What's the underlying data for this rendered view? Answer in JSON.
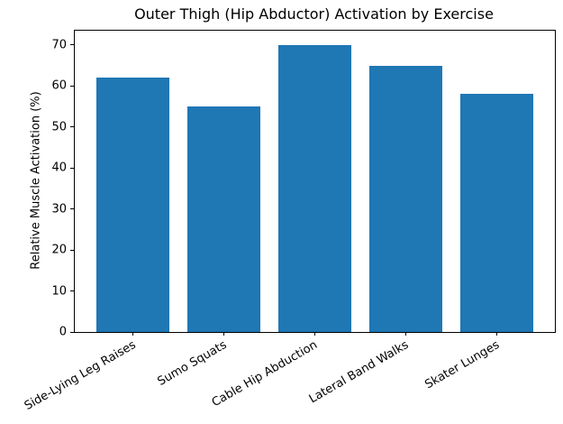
{
  "chart_data": {
    "type": "bar",
    "title": "Outer Thigh (Hip Abductor) Activation by Exercise",
    "xlabel": "",
    "ylabel": "Relative Muscle Activation (%)",
    "categories": [
      "Side-Lying Leg Raises",
      "Sumo Squats",
      "Cable Hip Abduction",
      "Lateral Band Walks",
      "Skater Lunges"
    ],
    "values": [
      62,
      55,
      70,
      65,
      58
    ],
    "yticks": [
      0,
      10,
      20,
      30,
      40,
      50,
      60,
      70
    ],
    "ylim": [
      0,
      73.5
    ],
    "xlim": [
      -0.64,
      4.64
    ],
    "bar_width": 0.8,
    "bar_color": "#1f77b4",
    "spine_color": "#000000",
    "background_color": "#ffffff",
    "grid": false,
    "legend": "none",
    "x_tick_rotation_deg": 30
  }
}
